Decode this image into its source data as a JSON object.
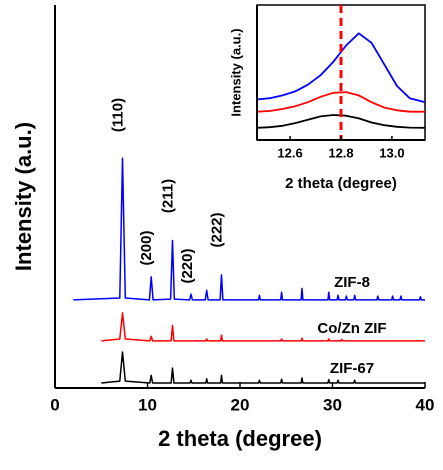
{
  "chart_data": [
    {
      "type": "line",
      "xlabel": "2 theta (degree)",
      "ylabel": "Intensity (a.u.)",
      "xlim": [
        0,
        40
      ],
      "xticks": [
        0,
        10,
        20,
        30,
        40
      ],
      "ylim": [
        0,
        100
      ],
      "annotations": [
        "(110)",
        "(200)",
        "(211)",
        "(220)",
        "(222)"
      ],
      "series": [
        {
          "name": "ZIF-8",
          "color": "#0000ff",
          "x": [
            2,
            7.0,
            7.3,
            7.6,
            10.2,
            10.4,
            10.6,
            12.5,
            12.7,
            12.9,
            14.55,
            14.7,
            14.85,
            16.25,
            16.4,
            16.55,
            17.85,
            18.0,
            18.15,
            22.0,
            22.1,
            22.2,
            24.4,
            24.5,
            24.6,
            26.6,
            26.7,
            26.8,
            29.5,
            29.6,
            29.7,
            30.5,
            30.6,
            30.7,
            31.4,
            31.5,
            31.6,
            32.3,
            32.4,
            32.5,
            34.8,
            34.9,
            35.0,
            36.4,
            36.5,
            36.6,
            37.3,
            37.4,
            37.5,
            39.4,
            39.5,
            39.6,
            40
          ],
          "values": [
            23,
            23.5,
            60,
            23.5,
            23,
            29,
            23,
            23.2,
            38.5,
            23.2,
            23,
            24.5,
            23,
            23,
            25.5,
            23,
            23,
            29.5,
            23,
            23,
            24.2,
            23,
            23,
            25,
            23,
            23,
            26,
            23,
            23,
            25,
            23,
            23,
            24.2,
            23,
            23,
            24,
            23,
            23,
            24.2,
            23,
            23,
            24,
            23,
            23,
            24,
            23,
            23,
            24,
            23,
            23,
            23.8,
            23,
            23
          ]
        },
        {
          "name": "Co/Zn ZIF",
          "color": "#ff0000",
          "x": [
            5,
            7.0,
            7.3,
            7.6,
            10.25,
            10.4,
            10.55,
            12.55,
            12.7,
            12.85,
            16.3,
            16.4,
            16.5,
            17.9,
            18.0,
            18.1,
            24.4,
            24.5,
            24.6,
            26.6,
            26.7,
            26.8,
            29.5,
            29.6,
            29.7,
            30.9,
            31.0,
            31.1,
            40
          ],
          "values": [
            12.3,
            12.8,
            19.6,
            12.8,
            12.3,
            13.5,
            12.3,
            12.3,
            16.3,
            12.3,
            12.3,
            12.8,
            12.3,
            12.3,
            13.8,
            12.3,
            12.3,
            12.8,
            12.3,
            12.3,
            13,
            12.3,
            12.3,
            12.8,
            12.3,
            12.3,
            12.7,
            12.3,
            12.3
          ]
        },
        {
          "name": "ZIF-67",
          "color": "#000000",
          "x": [
            5,
            7.0,
            7.3,
            7.6,
            10.25,
            10.4,
            10.55,
            12.55,
            12.7,
            12.85,
            14.6,
            14.7,
            14.8,
            16.3,
            16.4,
            16.5,
            17.9,
            18.0,
            18.1,
            22.0,
            22.1,
            22.2,
            24.4,
            24.5,
            24.6,
            26.6,
            26.7,
            26.8,
            29.5,
            29.6,
            29.7,
            30.5,
            30.6,
            30.7,
            32.3,
            32.4,
            32.5,
            40
          ],
          "values": [
            1.3,
            1.8,
            9.4,
            1.8,
            1.3,
            3.3,
            1.3,
            1.3,
            5.2,
            1.3,
            1.3,
            2,
            1.3,
            1.3,
            2.4,
            1.3,
            1.3,
            3.3,
            1.3,
            1.3,
            2,
            1.3,
            1.3,
            2.3,
            1.3,
            1.3,
            2.6,
            1.3,
            1.3,
            2.2,
            1.3,
            1.3,
            2,
            1.3,
            1.3,
            2,
            1.3,
            1.3
          ]
        }
      ]
    },
    {
      "type": "line",
      "xlabel": "2 theta (degree)",
      "ylabel": "Intensity (a.u.)",
      "xlim": [
        12.47,
        13.13
      ],
      "xticks": [
        12.6,
        12.8,
        {
          "value": 13,
          "label": "13.0"
        }
      ],
      "ylim": [
        0,
        100
      ],
      "vline": 12.8,
      "vline_color": "#ff0000",
      "series": [
        {
          "name": "ZIF-8",
          "color": "#0000ff",
          "x": [
            12.47,
            12.52,
            12.57,
            12.62,
            12.67,
            12.72,
            12.77,
            12.82,
            12.87,
            12.92,
            12.97,
            13.02,
            13.07,
            13.13
          ],
          "values": [
            30,
            31,
            33,
            36,
            41,
            48,
            58,
            70,
            79,
            72,
            56,
            40,
            31,
            28
          ]
        },
        {
          "name": "Co/Zn ZIF",
          "color": "#ff0000",
          "x": [
            12.47,
            12.52,
            12.57,
            12.62,
            12.67,
            12.72,
            12.77,
            12.82,
            12.87,
            12.92,
            12.97,
            13.02,
            13.07,
            13.13
          ],
          "values": [
            21,
            21.5,
            23,
            25,
            28,
            32,
            35,
            35.5,
            33,
            28,
            24,
            22,
            21,
            21
          ]
        },
        {
          "name": "ZIF-67",
          "color": "#000000",
          "x": [
            12.47,
            12.52,
            12.57,
            12.62,
            12.67,
            12.72,
            12.77,
            12.82,
            12.87,
            12.92,
            12.97,
            13.02,
            13.07,
            13.13
          ],
          "values": [
            9,
            9.5,
            10.5,
            12.5,
            15,
            17.5,
            18.5,
            18,
            16,
            13,
            11,
            9.8,
            9.2,
            9
          ]
        }
      ]
    }
  ]
}
